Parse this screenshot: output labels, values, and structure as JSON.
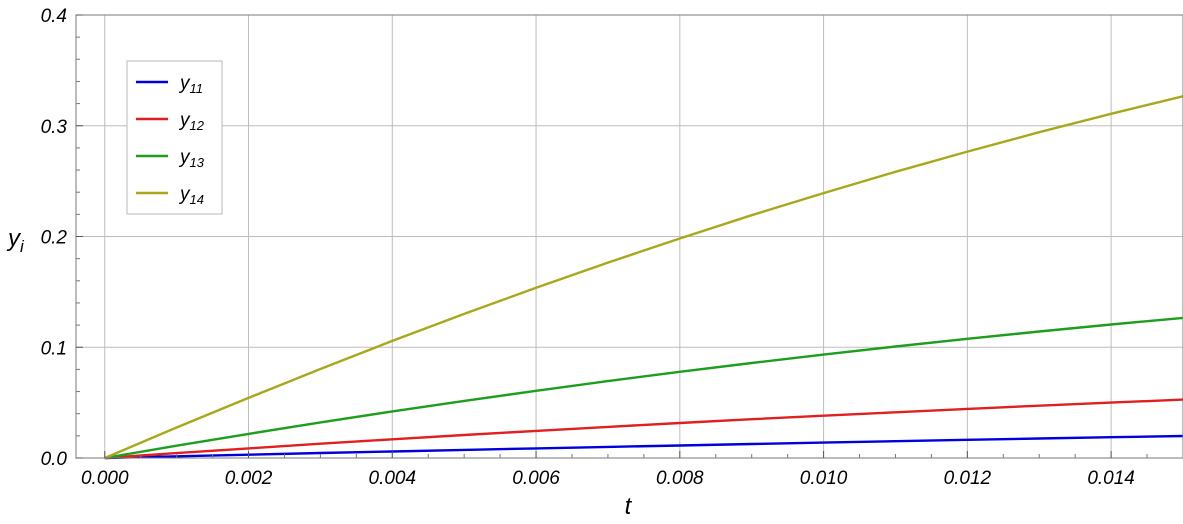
{
  "chart_data": {
    "type": "line",
    "xlabel": "t",
    "ylabel": "y",
    "ylabel_sub": "i",
    "xlim": [
      -0.0004,
      0.015
    ],
    "ylim": [
      0.0,
      0.4
    ],
    "x_ticks": [
      0.0,
      0.002,
      0.004,
      0.006,
      0.008,
      0.01,
      0.012,
      0.014
    ],
    "x_tick_labels": [
      "0.000",
      "0.002",
      "0.004",
      "0.006",
      "0.008",
      "0.010",
      "0.012",
      "0.014"
    ],
    "y_ticks": [
      0.0,
      0.1,
      0.2,
      0.3,
      0.4
    ],
    "y_tick_labels": [
      "0.0",
      "0.1",
      "0.2",
      "0.3",
      "0.4"
    ],
    "grid": true,
    "legend_position": "top-left",
    "x": [
      0.0,
      0.001,
      0.002,
      0.003,
      0.004,
      0.005,
      0.006,
      0.007,
      0.008,
      0.009,
      0.01,
      0.011,
      0.012,
      0.013,
      0.014,
      0.015
    ],
    "series": [
      {
        "name": "y",
        "name_sub": "11",
        "color": "#0000dd",
        "values": [
          0.0,
          0.0015,
          0.003,
          0.0045,
          0.0059,
          0.0073,
          0.0087,
          0.01,
          0.0113,
          0.0126,
          0.0139,
          0.0152,
          0.0164,
          0.0176,
          0.0188,
          0.0199
        ]
      },
      {
        "name": "y",
        "name_sub": "12",
        "color": "#e02020",
        "values": [
          0.0,
          0.0044,
          0.0087,
          0.0129,
          0.0169,
          0.0208,
          0.0245,
          0.0281,
          0.0316,
          0.035,
          0.0382,
          0.0413,
          0.0443,
          0.0472,
          0.05,
          0.0527
        ]
      },
      {
        "name": "y",
        "name_sub": "13",
        "color": "#1e9e1e",
        "values": [
          0.0,
          0.0111,
          0.0218,
          0.0321,
          0.0421,
          0.0516,
          0.0607,
          0.0694,
          0.0778,
          0.0858,
          0.0934,
          0.1007,
          0.1076,
          0.1142,
          0.1205,
          0.1265
        ]
      },
      {
        "name": "y",
        "name_sub": "14",
        "color": "#a8a81c",
        "values": [
          0.0,
          0.0275,
          0.0543,
          0.0804,
          0.1057,
          0.1301,
          0.1537,
          0.1764,
          0.1982,
          0.2192,
          0.2392,
          0.2584,
          0.2767,
          0.2942,
          0.3108,
          0.3266
        ]
      }
    ]
  }
}
